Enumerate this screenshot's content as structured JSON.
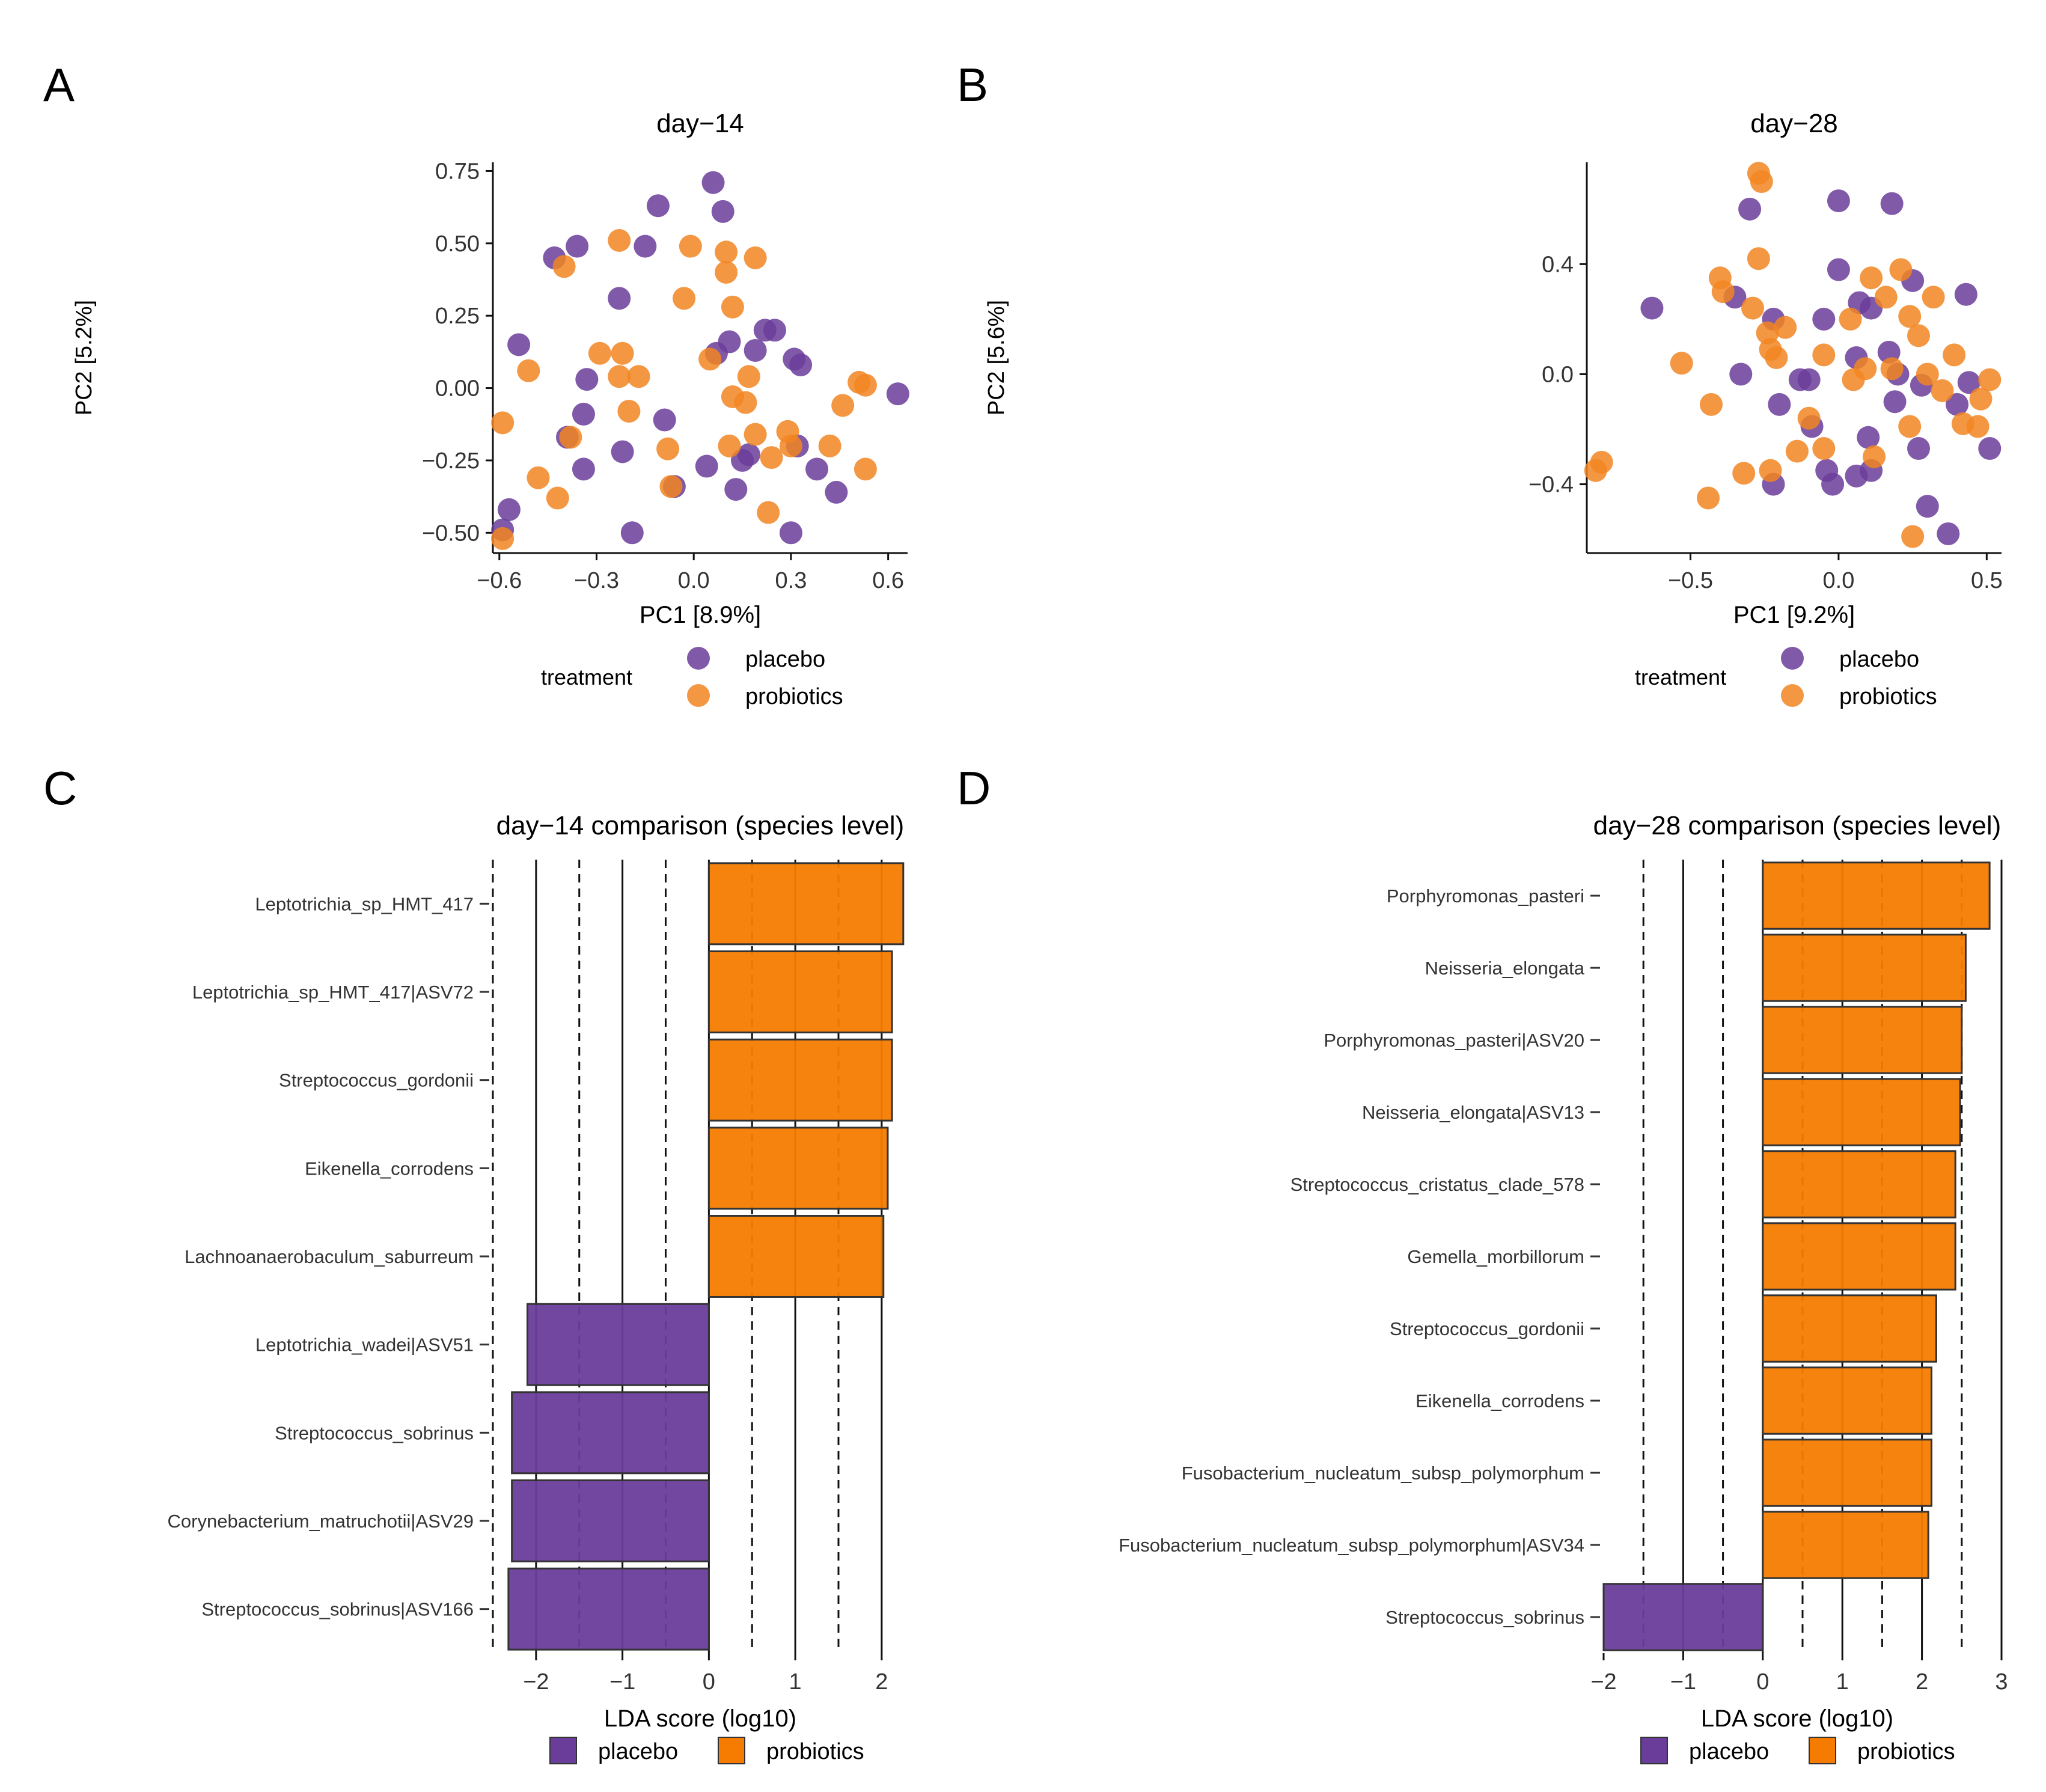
{
  "colors": {
    "placebo": "#6a3d9a",
    "probiotics": "#f28522",
    "probiotics_bar": "#f57c00",
    "axis": "#111111"
  },
  "legend": {
    "title": "treatment",
    "placebo": "placebo",
    "probiotics": "probiotics"
  },
  "chart_data": [
    {
      "panel": "A",
      "type": "scatter",
      "title": "day−14",
      "xlabel": "PC1 [8.9%]",
      "ylabel": "PC2 [5.2%]",
      "xlim": [
        -0.62,
        0.66
      ],
      "ylim": [
        -0.57,
        0.78
      ],
      "xticks": [
        -0.6,
        -0.3,
        0.0,
        0.3,
        0.6
      ],
      "xtick_labels": [
        "−0.6",
        "−0.3",
        "0.0",
        "0.3",
        "0.6"
      ],
      "yticks": [
        -0.5,
        -0.25,
        0.0,
        0.25,
        0.5,
        0.75
      ],
      "ytick_labels": [
        "−0.50",
        "−0.25",
        "0.00",
        "0.25",
        "0.50",
        "0.75"
      ],
      "series": [
        {
          "name": "placebo",
          "points": [
            [
              0.06,
              0.71
            ],
            [
              0.09,
              0.61
            ],
            [
              -0.11,
              0.63
            ],
            [
              -0.15,
              0.49
            ],
            [
              -0.43,
              0.45
            ],
            [
              -0.36,
              0.49
            ],
            [
              -0.23,
              0.31
            ],
            [
              -0.54,
              0.15
            ],
            [
              0.22,
              0.2
            ],
            [
              0.25,
              0.2
            ],
            [
              0.19,
              0.13
            ],
            [
              0.11,
              0.16
            ],
            [
              0.07,
              0.12
            ],
            [
              0.31,
              0.1
            ],
            [
              0.33,
              0.08
            ],
            [
              0.63,
              -0.02
            ],
            [
              -0.33,
              0.03
            ],
            [
              -0.34,
              -0.09
            ],
            [
              -0.39,
              -0.17
            ],
            [
              -0.34,
              -0.28
            ],
            [
              -0.22,
              -0.22
            ],
            [
              -0.09,
              -0.11
            ],
            [
              -0.06,
              -0.34
            ],
            [
              0.04,
              -0.27
            ],
            [
              0.13,
              -0.35
            ],
            [
              0.15,
              -0.25
            ],
            [
              0.17,
              -0.23
            ],
            [
              0.32,
              -0.2
            ],
            [
              0.38,
              -0.28
            ],
            [
              0.44,
              -0.36
            ],
            [
              -0.57,
              -0.42
            ],
            [
              -0.59,
              -0.49
            ],
            [
              -0.19,
              -0.5
            ],
            [
              0.3,
              -0.5
            ]
          ]
        },
        {
          "name": "probiotics",
          "points": [
            [
              -0.4,
              0.42
            ],
            [
              -0.23,
              0.51
            ],
            [
              -0.01,
              0.49
            ],
            [
              0.1,
              0.47
            ],
            [
              0.1,
              0.4
            ],
            [
              0.19,
              0.45
            ],
            [
              -0.03,
              0.31
            ],
            [
              0.12,
              0.28
            ],
            [
              -0.29,
              0.12
            ],
            [
              -0.22,
              0.12
            ],
            [
              -0.17,
              0.04
            ],
            [
              -0.23,
              0.04
            ],
            [
              -0.51,
              0.06
            ],
            [
              0.17,
              0.04
            ],
            [
              0.05,
              0.1
            ],
            [
              0.12,
              -0.03
            ],
            [
              0.16,
              -0.05
            ],
            [
              0.46,
              -0.06
            ],
            [
              0.51,
              0.02
            ],
            [
              0.53,
              0.01
            ],
            [
              -0.59,
              -0.12
            ],
            [
              -0.38,
              -0.17
            ],
            [
              -0.2,
              -0.08
            ],
            [
              -0.08,
              -0.21
            ],
            [
              -0.48,
              -0.31
            ],
            [
              -0.42,
              -0.38
            ],
            [
              -0.07,
              -0.34
            ],
            [
              0.11,
              -0.2
            ],
            [
              0.19,
              -0.16
            ],
            [
              0.24,
              -0.24
            ],
            [
              0.29,
              -0.15
            ],
            [
              0.3,
              -0.2
            ],
            [
              0.42,
              -0.2
            ],
            [
              0.53,
              -0.28
            ],
            [
              0.23,
              -0.43
            ],
            [
              -0.59,
              -0.52
            ]
          ]
        }
      ]
    },
    {
      "panel": "B",
      "type": "scatter",
      "title": "day−28",
      "xlabel": "PC1 [9.2%]",
      "ylabel": "PC2 [5.6%]",
      "xlim": [
        -0.85,
        0.55
      ],
      "ylim": [
        -0.65,
        0.77
      ],
      "xticks": [
        -0.5,
        0.0,
        0.5
      ],
      "xtick_labels": [
        "−0.5",
        "0.0",
        "0.5"
      ],
      "yticks": [
        -0.4,
        0.0,
        0.4
      ],
      "ytick_labels": [
        "−0.4",
        "0.0",
        "0.4"
      ],
      "series": [
        {
          "name": "placebo",
          "points": [
            [
              -0.3,
              0.6
            ],
            [
              0.0,
              0.63
            ],
            [
              0.18,
              0.62
            ],
            [
              -0.63,
              0.24
            ],
            [
              -0.35,
              0.28
            ],
            [
              -0.22,
              0.2
            ],
            [
              -0.05,
              0.2
            ],
            [
              0.0,
              0.38
            ],
            [
              0.07,
              0.26
            ],
            [
              0.11,
              0.24
            ],
            [
              0.25,
              0.34
            ],
            [
              0.43,
              0.29
            ],
            [
              -0.33,
              0.0
            ],
            [
              -0.13,
              -0.02
            ],
            [
              -0.1,
              -0.02
            ],
            [
              0.06,
              0.06
            ],
            [
              0.17,
              0.08
            ],
            [
              0.2,
              0.0
            ],
            [
              0.28,
              -0.04
            ],
            [
              0.44,
              -0.03
            ],
            [
              0.4,
              -0.11
            ],
            [
              -0.2,
              -0.11
            ],
            [
              -0.09,
              -0.19
            ],
            [
              0.1,
              -0.23
            ],
            [
              0.19,
              -0.1
            ],
            [
              0.27,
              -0.27
            ],
            [
              0.51,
              -0.27
            ],
            [
              -0.22,
              -0.4
            ],
            [
              -0.04,
              -0.35
            ],
            [
              -0.02,
              -0.4
            ],
            [
              0.06,
              -0.37
            ],
            [
              0.11,
              -0.35
            ],
            [
              0.3,
              -0.48
            ],
            [
              0.37,
              -0.58
            ]
          ]
        },
        {
          "name": "probiotics",
          "points": [
            [
              -0.27,
              0.73
            ],
            [
              -0.26,
              0.7
            ],
            [
              -0.27,
              0.42
            ],
            [
              -0.4,
              0.35
            ],
            [
              -0.39,
              0.3
            ],
            [
              -0.29,
              0.24
            ],
            [
              -0.24,
              0.15
            ],
            [
              -0.18,
              0.17
            ],
            [
              -0.23,
              0.09
            ],
            [
              -0.21,
              0.06
            ],
            [
              -0.53,
              0.04
            ],
            [
              -0.05,
              0.07
            ],
            [
              0.04,
              0.2
            ],
            [
              0.11,
              0.35
            ],
            [
              0.16,
              0.28
            ],
            [
              0.21,
              0.38
            ],
            [
              0.24,
              0.21
            ],
            [
              0.32,
              0.28
            ],
            [
              0.27,
              0.14
            ],
            [
              0.39,
              0.07
            ],
            [
              -0.43,
              -0.11
            ],
            [
              -0.14,
              -0.28
            ],
            [
              -0.1,
              -0.16
            ],
            [
              0.05,
              -0.02
            ],
            [
              0.09,
              0.02
            ],
            [
              0.18,
              0.02
            ],
            [
              0.3,
              0.0
            ],
            [
              0.35,
              -0.06
            ],
            [
              0.48,
              -0.09
            ],
            [
              0.51,
              -0.02
            ],
            [
              0.24,
              -0.19
            ],
            [
              0.42,
              -0.18
            ],
            [
              0.47,
              -0.19
            ],
            [
              -0.8,
              -0.32
            ],
            [
              -0.82,
              -0.35
            ],
            [
              -0.32,
              -0.36
            ],
            [
              -0.23,
              -0.35
            ],
            [
              -0.05,
              -0.27
            ],
            [
              0.12,
              -0.3
            ],
            [
              -0.44,
              -0.45
            ],
            [
              0.25,
              -0.59
            ]
          ]
        }
      ]
    },
    {
      "panel": "C",
      "type": "bar",
      "orientation": "horizontal",
      "title": "day−14 comparison (species level)",
      "xlabel": "LDA score (log10)",
      "xlim": [
        -2.5,
        2.3
      ],
      "xticks": [
        -2,
        -1,
        0,
        1,
        2
      ],
      "xtick_labels": [
        "−2",
        "−1",
        "0",
        "1",
        "2"
      ],
      "solid_lines": [
        -2,
        -1,
        0,
        1,
        2
      ],
      "dashed_lines": [
        -2.5,
        -1.5,
        -0.5,
        0.5,
        1.5
      ],
      "categories": [
        "Leptotrichia_sp_HMT_417",
        "Leptotrichia_sp_HMT_417|ASV72",
        "Streptococcus_gordonii",
        "Eikenella_corrodens",
        "Lachnoanaerobaculum_saburreum",
        "Leptotrichia_wadei|ASV51",
        "Streptococcus_sobrinus",
        "Corynebacterium_matruchotii|ASV29",
        "Streptococcus_sobrinus|ASV166"
      ],
      "values": [
        2.25,
        2.12,
        2.12,
        2.07,
        2.02,
        -2.1,
        -2.28,
        -2.28,
        -2.32
      ],
      "groups": [
        "probiotics",
        "probiotics",
        "probiotics",
        "probiotics",
        "probiotics",
        "placebo",
        "placebo",
        "placebo",
        "placebo"
      ]
    },
    {
      "panel": "D",
      "type": "bar",
      "orientation": "horizontal",
      "title": "day−28 comparison (species level)",
      "xlabel": "LDA score (log10)",
      "xlim": [
        -2.0,
        3.0
      ],
      "xticks": [
        -2,
        -1,
        0,
        1,
        2,
        3
      ],
      "xtick_labels": [
        "−2",
        "−1",
        "0",
        "1",
        "2",
        "3"
      ],
      "solid_lines": [
        -1,
        0,
        1,
        2,
        3
      ],
      "dashed_lines": [
        -1.5,
        -0.5,
        0.5,
        1.5,
        2.5
      ],
      "categories": [
        "Porphyromonas_pasteri",
        "Neisseria_elongata",
        "Porphyromonas_pasteri|ASV20",
        "Neisseria_elongata|ASV13",
        "Streptococcus_cristatus_clade_578",
        "Gemella_morbillorum",
        "Streptococcus_gordonii",
        "Eikenella_corrodens",
        "Fusobacterium_nucleatum_subsp_polymorphum",
        "Fusobacterium_nucleatum_subsp_polymorphum|ASV34",
        "Streptococcus_sobrinus"
      ],
      "values": [
        2.85,
        2.55,
        2.5,
        2.48,
        2.42,
        2.42,
        2.18,
        2.12,
        2.12,
        2.08,
        -2.0
      ],
      "groups": [
        "probiotics",
        "probiotics",
        "probiotics",
        "probiotics",
        "probiotics",
        "probiotics",
        "probiotics",
        "probiotics",
        "probiotics",
        "probiotics",
        "placebo"
      ]
    }
  ]
}
